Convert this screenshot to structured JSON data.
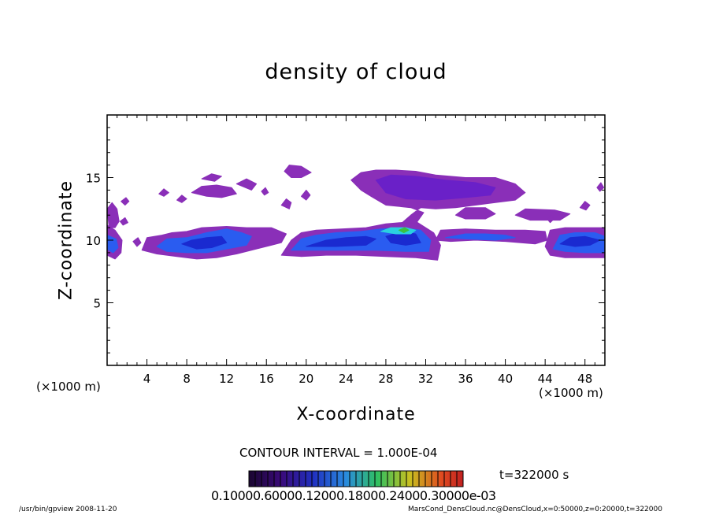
{
  "page": {
    "footer_left": "/usr/bin/gpview   2008-11-20",
    "footer_right": "MarsCond_DensCloud.nc@DensCloud,x=0:50000,z=0:20000,t=322000"
  },
  "chart_data": {
    "type": "heatmap",
    "title": "density of cloud",
    "xlabel": "X-coordinate",
    "ylabel": "Z-coordinate",
    "x_unit_label": "(×1000 m)",
    "z_unit_label": "(×1000 m)",
    "xlim": [
      0,
      50
    ],
    "ylim": [
      0,
      20
    ],
    "x_ticks": [
      "4",
      "8",
      "12",
      "16",
      "20",
      "24",
      "28",
      "32",
      "36",
      "40",
      "44",
      "48"
    ],
    "y_ticks": [
      "5",
      "10",
      "15"
    ],
    "contour_interval": "CONTOUR INTERVAL = 1.000E-04",
    "time": "t=322000 s",
    "colorbar_labels": "0.10000.60000.12000.18000.24000.30000e-03",
    "colors": {
      "purple": "#8a2fb8",
      "violet": "#6a20c8",
      "blue": "#2a5cf0",
      "darkblue": "#1a2ad0",
      "cyan": "#2ad0e0",
      "green": "#3ac040",
      "yellow": "#e0e020"
    },
    "cloud_regions": [
      {
        "level": "purple",
        "points": [
          [
            0,
            12.5
          ],
          [
            0.5,
            13
          ],
          [
            1,
            12.5
          ],
          [
            1.2,
            11.5
          ],
          [
            0.8,
            11
          ],
          [
            0.2,
            11
          ]
        ]
      },
      {
        "level": "purple",
        "points": [
          [
            0,
            8.8
          ],
          [
            0,
            11.2
          ],
          [
            0.8,
            10.8
          ],
          [
            1.5,
            10
          ],
          [
            1.4,
            9
          ],
          [
            0.8,
            8.5
          ]
        ]
      },
      {
        "level": "blue",
        "points": [
          [
            0,
            9.3
          ],
          [
            0,
            10.4
          ],
          [
            0.9,
            10.1
          ],
          [
            1.1,
            9.4
          ],
          [
            0.6,
            9
          ]
        ]
      },
      {
        "level": "purple",
        "points": [
          [
            3.5,
            9.2
          ],
          [
            4,
            10.2
          ],
          [
            5.5,
            10.4
          ],
          [
            6.5,
            10.6
          ],
          [
            8,
            10.7
          ],
          [
            9.5,
            11
          ],
          [
            12,
            11.1
          ],
          [
            14,
            11
          ],
          [
            15.5,
            11
          ],
          [
            16.5,
            11
          ],
          [
            18,
            10.5
          ],
          [
            17.5,
            9.8
          ],
          [
            16.5,
            9.6
          ],
          [
            15,
            9.3
          ],
          [
            13,
            8.9
          ],
          [
            11,
            8.6
          ],
          [
            9,
            8.5
          ],
          [
            7,
            8.7
          ],
          [
            5,
            8.9
          ]
        ]
      },
      {
        "level": "blue",
        "points": [
          [
            5,
            9.5
          ],
          [
            6,
            10.1
          ],
          [
            8,
            10.2
          ],
          [
            10,
            10.6
          ],
          [
            12,
            10.9
          ],
          [
            13.5,
            10.6
          ],
          [
            14.5,
            10.3
          ],
          [
            14,
            9.6
          ],
          [
            12,
            9.3
          ],
          [
            10,
            9
          ],
          [
            8,
            9
          ],
          [
            6,
            9.1
          ]
        ]
      },
      {
        "level": "darkblue",
        "points": [
          [
            7.5,
            9.7
          ],
          [
            8.5,
            10
          ],
          [
            10,
            10.2
          ],
          [
            11.5,
            10.3
          ],
          [
            12,
            9.8
          ],
          [
            10.5,
            9.4
          ],
          [
            9,
            9.3
          ]
        ]
      },
      {
        "level": "purple",
        "points": [
          [
            17.5,
            8.8
          ],
          [
            18.5,
            10
          ],
          [
            19.5,
            10.6
          ],
          [
            21,
            10.8
          ],
          [
            23.5,
            10.9
          ],
          [
            26,
            11
          ],
          [
            28,
            11.3
          ],
          [
            31,
            11.5
          ],
          [
            32.8,
            10.6
          ],
          [
            33.5,
            9.6
          ],
          [
            33.2,
            8.4
          ],
          [
            31,
            8.6
          ],
          [
            28,
            8.7
          ],
          [
            25,
            8.8
          ],
          [
            22,
            8.8
          ],
          [
            19.5,
            8.7
          ]
        ]
      },
      {
        "level": "blue",
        "points": [
          [
            18.5,
            9.2
          ],
          [
            19.5,
            10.1
          ],
          [
            21,
            10.4
          ],
          [
            23,
            10.6
          ],
          [
            25.5,
            10.7
          ],
          [
            27.5,
            10.9
          ],
          [
            29.5,
            11
          ],
          [
            31.5,
            10.8
          ],
          [
            32.5,
            10
          ],
          [
            32.3,
            9.1
          ],
          [
            30,
            9.1
          ],
          [
            27,
            9.2
          ],
          [
            24,
            9.2
          ],
          [
            21,
            9.2
          ]
        ]
      },
      {
        "level": "darkblue",
        "points": [
          [
            20,
            9.5
          ],
          [
            22,
            10
          ],
          [
            24,
            10.2
          ],
          [
            26,
            10.3
          ],
          [
            27,
            10.1
          ],
          [
            26,
            9.6
          ],
          [
            23,
            9.5
          ]
        ]
      },
      {
        "level": "darkblue",
        "points": [
          [
            28,
            10.3
          ],
          [
            29.5,
            10.7
          ],
          [
            31,
            10.5
          ],
          [
            31.5,
            9.8
          ],
          [
            30,
            9.6
          ],
          [
            28.5,
            9.8
          ]
        ]
      },
      {
        "level": "cyan",
        "points": [
          [
            27.5,
            10.7
          ],
          [
            28.5,
            11
          ],
          [
            30,
            11
          ],
          [
            31,
            10.8
          ],
          [
            30.5,
            10.5
          ],
          [
            29,
            10.5
          ]
        ]
      },
      {
        "level": "green",
        "points": [
          [
            29.3,
            10.8
          ],
          [
            29.9,
            11
          ],
          [
            30.3,
            10.8
          ],
          [
            29.8,
            10.6
          ]
        ]
      },
      {
        "level": "purple",
        "points": [
          [
            33,
            10
          ],
          [
            33.5,
            10.8
          ],
          [
            36,
            10.9
          ],
          [
            39,
            10.8
          ],
          [
            42,
            10.8
          ],
          [
            44,
            10.7
          ],
          [
            44.2,
            10
          ],
          [
            43,
            9.7
          ],
          [
            40,
            9.9
          ],
          [
            37,
            10
          ],
          [
            34.5,
            9.9
          ]
        ]
      },
      {
        "level": "blue",
        "points": [
          [
            34,
            10.2
          ],
          [
            36,
            10.5
          ],
          [
            38,
            10.5
          ],
          [
            40,
            10.4
          ],
          [
            41,
            10.2
          ],
          [
            39,
            10
          ],
          [
            36,
            10.1
          ]
        ]
      },
      {
        "level": "purple",
        "points": [
          [
            44,
            9.5
          ],
          [
            44.5,
            10.8
          ],
          [
            46,
            11
          ],
          [
            48,
            11
          ],
          [
            50,
            11
          ],
          [
            50,
            8.6
          ],
          [
            48.5,
            8.6
          ],
          [
            46,
            8.6
          ],
          [
            44.5,
            8.8
          ]
        ]
      },
      {
        "level": "blue",
        "points": [
          [
            44.8,
            9.3
          ],
          [
            45.5,
            10.4
          ],
          [
            47,
            10.6
          ],
          [
            49,
            10.6
          ],
          [
            50,
            10.3
          ],
          [
            50,
            9
          ],
          [
            48,
            9
          ],
          [
            46,
            9.1
          ]
        ]
      },
      {
        "level": "darkblue",
        "points": [
          [
            45.5,
            9.7
          ],
          [
            46.5,
            10.2
          ],
          [
            48,
            10.3
          ],
          [
            49.5,
            10
          ],
          [
            48.5,
            9.6
          ],
          [
            47,
            9.5
          ]
        ]
      },
      {
        "level": "purple",
        "points": [
          [
            24.5,
            14.8
          ],
          [
            25.5,
            15.4
          ],
          [
            27,
            15.6
          ],
          [
            29,
            15.6
          ],
          [
            31,
            15.5
          ],
          [
            33,
            15.2
          ],
          [
            36,
            15
          ],
          [
            39,
            15
          ],
          [
            41,
            14.5
          ],
          [
            42,
            13.8
          ],
          [
            41,
            13.2
          ],
          [
            39,
            13
          ],
          [
            37,
            12.8
          ],
          [
            35,
            12.6
          ],
          [
            33,
            12.5
          ],
          [
            31.5,
            12.6
          ],
          [
            30.5,
            12
          ],
          [
            29.5,
            11.3
          ],
          [
            31,
            11.3
          ],
          [
            31.8,
            12.2
          ],
          [
            30.5,
            12.6
          ],
          [
            28,
            12.8
          ],
          [
            26.5,
            13.5
          ],
          [
            25.5,
            14
          ]
        ]
      },
      {
        "level": "violet",
        "points": [
          [
            27,
            14.8
          ],
          [
            28.5,
            15.2
          ],
          [
            31,
            15.1
          ],
          [
            34,
            14.8
          ],
          [
            37,
            14.6
          ],
          [
            39,
            14.2
          ],
          [
            38.5,
            13.6
          ],
          [
            36,
            13.4
          ],
          [
            33,
            13.2
          ],
          [
            30,
            13.3
          ],
          [
            28,
            13.8
          ]
        ]
      },
      {
        "level": "purple",
        "points": [
          [
            35,
            12
          ],
          [
            36,
            12.6
          ],
          [
            38,
            12.6
          ],
          [
            39,
            12.1
          ],
          [
            38,
            11.7
          ],
          [
            36,
            11.7
          ]
        ]
      },
      {
        "level": "purple",
        "points": [
          [
            41,
            12
          ],
          [
            42,
            12.5
          ],
          [
            45,
            12.4
          ],
          [
            46.5,
            12.1
          ],
          [
            45.5,
            11.6
          ],
          [
            42.5,
            11.6
          ]
        ]
      },
      {
        "level": "purple",
        "points": [
          [
            17.8,
            15.5
          ],
          [
            18.3,
            16
          ],
          [
            19.5,
            15.9
          ],
          [
            20.5,
            15.4
          ],
          [
            19.5,
            15
          ],
          [
            18.5,
            15
          ]
        ]
      },
      {
        "level": "purple",
        "points": [
          [
            17.5,
            12.8
          ],
          [
            18,
            13.3
          ],
          [
            18.5,
            13
          ],
          [
            18.3,
            12.5
          ]
        ]
      },
      {
        "level": "purple",
        "points": [
          [
            19.5,
            13.5
          ],
          [
            20,
            14
          ],
          [
            20.4,
            13.6
          ],
          [
            20,
            13.2
          ]
        ]
      },
      {
        "level": "purple",
        "points": [
          [
            8.5,
            13.8
          ],
          [
            9.5,
            14.3
          ],
          [
            11,
            14.4
          ],
          [
            12.5,
            14.2
          ],
          [
            13,
            13.7
          ],
          [
            11.5,
            13.4
          ],
          [
            10,
            13.5
          ]
        ]
      },
      {
        "level": "purple",
        "points": [
          [
            9.5,
            14.9
          ],
          [
            10.5,
            15.3
          ],
          [
            11.5,
            15.1
          ],
          [
            10.8,
            14.7
          ]
        ]
      },
      {
        "level": "purple",
        "points": [
          [
            13,
            14.5
          ],
          [
            14,
            14.9
          ],
          [
            15,
            14.5
          ],
          [
            14.5,
            14
          ]
        ]
      },
      {
        "level": "purple",
        "points": [
          [
            5.2,
            13.7
          ],
          [
            5.7,
            14.1
          ],
          [
            6.2,
            13.8
          ],
          [
            5.7,
            13.5
          ]
        ]
      },
      {
        "level": "purple",
        "points": [
          [
            7,
            13.2
          ],
          [
            7.5,
            13.6
          ],
          [
            8,
            13.3
          ],
          [
            7.5,
            13
          ]
        ]
      },
      {
        "level": "purple",
        "points": [
          [
            1.3,
            11.5
          ],
          [
            1.8,
            11.8
          ],
          [
            2.1,
            11.4
          ],
          [
            1.6,
            11.2
          ]
        ]
      },
      {
        "level": "purple",
        "points": [
          [
            1.4,
            13.1
          ],
          [
            1.9,
            13.4
          ],
          [
            2.2,
            13.1
          ],
          [
            1.8,
            12.8
          ]
        ]
      },
      {
        "level": "purple",
        "points": [
          [
            2.6,
            9.9
          ],
          [
            3.1,
            10.2
          ],
          [
            3.4,
            9.8
          ],
          [
            3,
            9.5
          ]
        ]
      },
      {
        "level": "purple",
        "points": [
          [
            15.5,
            13.9
          ],
          [
            15.9,
            14.2
          ],
          [
            16.2,
            13.8
          ],
          [
            15.8,
            13.6
          ]
        ]
      },
      {
        "level": "purple",
        "points": [
          [
            47.5,
            12.6
          ],
          [
            48,
            13.1
          ],
          [
            48.5,
            12.8
          ],
          [
            48.1,
            12.4
          ]
        ]
      },
      {
        "level": "purple",
        "points": [
          [
            49.2,
            14.2
          ],
          [
            49.6,
            14.6
          ],
          [
            49.9,
            14.2
          ],
          [
            49.5,
            13.9
          ]
        ]
      },
      {
        "level": "purple",
        "points": [
          [
            44.2,
            11.7
          ],
          [
            44.6,
            12
          ],
          [
            44.9,
            11.7
          ],
          [
            44.5,
            11.4
          ]
        ]
      }
    ]
  }
}
